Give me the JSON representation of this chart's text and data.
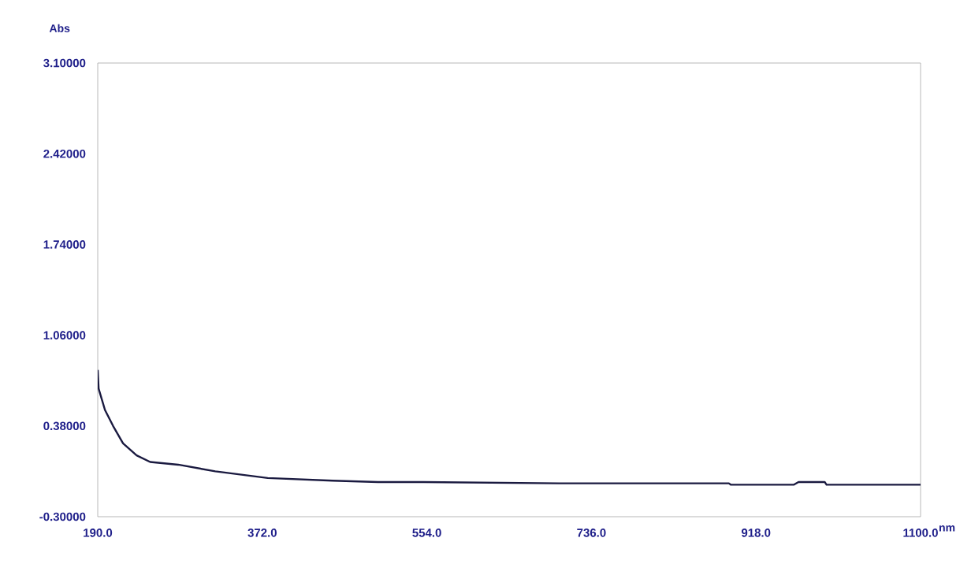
{
  "chart_data": {
    "type": "line",
    "xlabel": "nm",
    "ylabel": "Abs",
    "x": [
      190,
      191,
      198,
      207,
      218,
      233,
      248,
      279,
      320,
      378,
      450,
      500,
      550,
      700,
      888,
      890,
      960,
      965,
      994,
      996,
      1100
    ],
    "series": [
      {
        "color": "#1a1a40",
        "values": [
          0.8,
          0.66,
          0.5,
          0.38,
          0.25,
          0.16,
          0.11,
          0.09,
          0.04,
          -0.01,
          -0.03,
          -0.04,
          -0.04,
          -0.05,
          -0.05,
          -0.06,
          -0.06,
          -0.04,
          -0.04,
          -0.06,
          -0.06
        ]
      }
    ],
    "xlim": [
      190,
      1100
    ],
    "ylim": [
      -0.3,
      3.1
    ],
    "xticks": [
      {
        "value": 190,
        "label": "190.0"
      },
      {
        "value": 372,
        "label": "372.0"
      },
      {
        "value": 554,
        "label": "554.0"
      },
      {
        "value": 736,
        "label": "736.0"
      },
      {
        "value": 918,
        "label": "918.0"
      },
      {
        "value": 1100,
        "label": "1100.0"
      }
    ],
    "yticks": [
      {
        "value": -0.3,
        "label": "-0.30000"
      },
      {
        "value": 0.38,
        "label": "0.38000"
      },
      {
        "value": 1.06,
        "label": "1.06000"
      },
      {
        "value": 1.74,
        "label": "1.74000"
      },
      {
        "value": 2.42,
        "label": "2.42000"
      },
      {
        "value": 3.1,
        "label": "3.10000"
      }
    ],
    "grid": false,
    "marker": "none",
    "line_style": "solid"
  }
}
